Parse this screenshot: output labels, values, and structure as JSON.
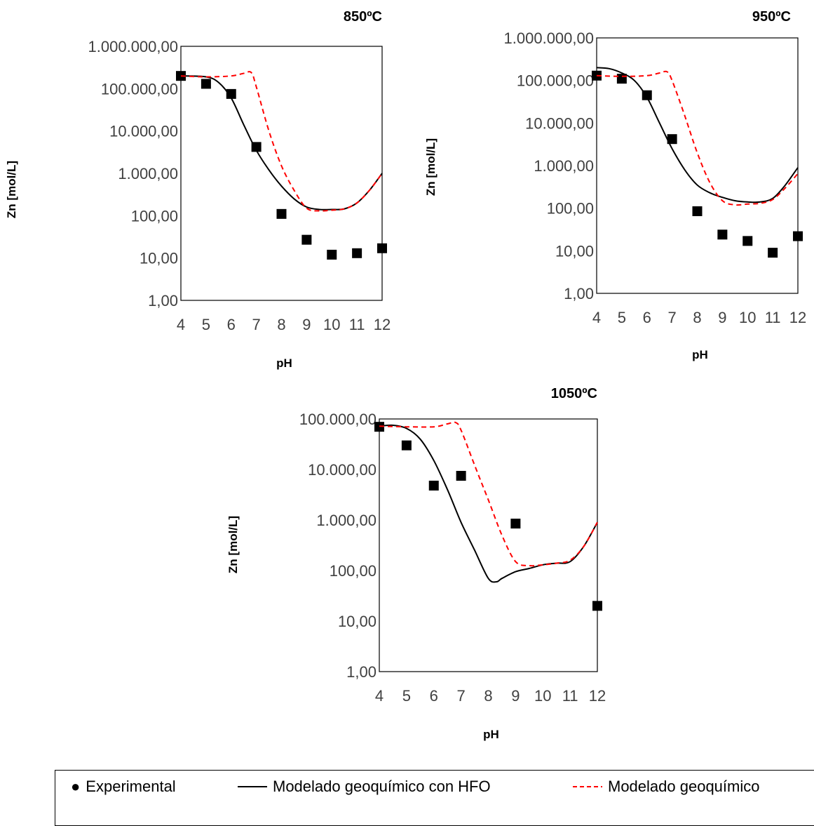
{
  "chart_data": [
    {
      "type": "line",
      "title": "850ºC",
      "xlabel": "pH",
      "ylabel": "Zn [mol/L]",
      "y_scale": "log",
      "ylim": [
        1,
        1000000
      ],
      "xlim": [
        4,
        12
      ],
      "x_ticks": [
        "4",
        "5",
        "6",
        "7",
        "8",
        "9",
        "10",
        "11",
        "12"
      ],
      "y_ticks": [
        "1,00",
        "10,00",
        "100,00",
        "1.000,00",
        "10.000,00",
        "100.000,00",
        "1.000.000,00"
      ],
      "series": [
        {
          "name": "Experimental",
          "kind": "scatter",
          "color": "#000000",
          "x": [
            4,
            5,
            6,
            7,
            8,
            9,
            10,
            11,
            12
          ],
          "y": [
            200000,
            130000,
            75000,
            4200,
            110,
            27,
            12,
            13,
            17
          ]
        },
        {
          "name": "Modelado geoquímico con HFO",
          "kind": "line",
          "color": "#000000",
          "x": [
            4,
            5,
            5.5,
            6,
            6.5,
            7,
            7.5,
            8,
            8.5,
            9,
            9.5,
            10,
            10.5,
            11,
            11.5,
            12
          ],
          "y": [
            200000,
            190000,
            140000,
            60000,
            14000,
            3500,
            1200,
            500,
            250,
            160,
            140,
            140,
            145,
            200,
            400,
            1000
          ]
        },
        {
          "name": "Modelado geoquímico",
          "kind": "dashed",
          "color": "#ff0000",
          "x": [
            4,
            5,
            6,
            6.5,
            6.8,
            7,
            7.5,
            8,
            8.5,
            9,
            9.5,
            10,
            10.5,
            11,
            11.5,
            12
          ],
          "y": [
            200000,
            190000,
            200000,
            230000,
            240000,
            110000,
            10000,
            1500,
            400,
            150,
            130,
            135,
            145,
            200,
            400,
            1000
          ]
        }
      ]
    },
    {
      "type": "line",
      "title": "950ºC",
      "xlabel": "pH",
      "ylabel": "Zn [mol/L]",
      "y_scale": "log",
      "ylim": [
        1,
        1000000
      ],
      "xlim": [
        4,
        12
      ],
      "x_ticks": [
        "4",
        "5",
        "6",
        "7",
        "8",
        "9",
        "10",
        "11",
        "12"
      ],
      "y_ticks": [
        "1,00",
        "10,00",
        "100,00",
        "1.000,00",
        "10.000,00",
        "100.000,00",
        "1.000.000,00"
      ],
      "series": [
        {
          "name": "Experimental",
          "kind": "scatter",
          "color": "#000000",
          "x": [
            4,
            5,
            6,
            7,
            8,
            9,
            10,
            11,
            12
          ],
          "y": [
            130000,
            110000,
            45000,
            4200,
            85,
            24,
            17,
            9,
            22
          ]
        },
        {
          "name": "Modelado geoquímico con HFO",
          "kind": "line",
          "color": "#000000",
          "x": [
            4,
            4.5,
            5,
            5.5,
            6,
            6.5,
            7,
            7.5,
            8,
            8.5,
            9,
            9.5,
            10,
            10.5,
            11,
            11.5,
            12
          ],
          "y": [
            200000,
            190000,
            150000,
            100000,
            40000,
            10000,
            2500,
            800,
            350,
            230,
            180,
            150,
            140,
            140,
            170,
            350,
            900
          ]
        },
        {
          "name": "Modelado geoquímico",
          "kind": "dashed",
          "color": "#ff0000",
          "x": [
            4,
            5,
            6,
            6.5,
            6.8,
            7,
            7.5,
            8,
            8.5,
            9,
            9.5,
            10,
            10.5,
            11,
            11.5,
            12
          ],
          "y": [
            130000,
            125000,
            130000,
            150000,
            160000,
            100000,
            15000,
            2000,
            400,
            150,
            120,
            125,
            130,
            160,
            300,
            650
          ]
        }
      ]
    },
    {
      "type": "line",
      "title": "1050ºC",
      "xlabel": "pH",
      "ylabel": "Zn [mol/L]",
      "y_scale": "log",
      "ylim": [
        1,
        100000
      ],
      "xlim": [
        4,
        12
      ],
      "x_ticks": [
        "4",
        "5",
        "6",
        "7",
        "8",
        "9",
        "10",
        "11",
        "12"
      ],
      "y_ticks": [
        "1,00",
        "10,00",
        "100,00",
        "1.000,00",
        "10.000,00",
        "100.000,00"
      ],
      "series": [
        {
          "name": "Experimental",
          "kind": "scatter",
          "color": "#000000",
          "x": [
            4,
            5,
            6,
            7,
            9,
            12
          ],
          "y": [
            70000,
            30000,
            4800,
            7500,
            850,
            20
          ]
        },
        {
          "name": "Modelado geoquímico con HFO",
          "kind": "line",
          "color": "#000000",
          "x": [
            4,
            4.5,
            5,
            5.5,
            6,
            6.5,
            7,
            7.5,
            8,
            8.3,
            8.5,
            9,
            9.5,
            10,
            10.5,
            11,
            11.5,
            12
          ],
          "y": [
            72000,
            75000,
            65000,
            40000,
            15000,
            4000,
            900,
            250,
            70,
            60,
            70,
            95,
            110,
            130,
            140,
            150,
            300,
            900
          ]
        },
        {
          "name": "Modelado geoquímico",
          "kind": "dashed",
          "color": "#ff0000",
          "x": [
            4,
            5,
            6,
            6.5,
            6.8,
            7,
            7.5,
            8,
            8.5,
            9,
            9.5,
            10,
            10.5,
            11,
            11.5,
            12
          ],
          "y": [
            72000,
            70000,
            70000,
            80000,
            85000,
            60000,
            12000,
            2500,
            500,
            150,
            125,
            130,
            140,
            160,
            300,
            900
          ]
        }
      ]
    }
  ],
  "legend": {
    "items": [
      {
        "marker": "●",
        "label": "Experimental"
      },
      {
        "marker": "line",
        "label": "Modelado geoquímico con HFO"
      },
      {
        "marker": "dash",
        "label": "Modelado geoquímico"
      }
    ]
  }
}
